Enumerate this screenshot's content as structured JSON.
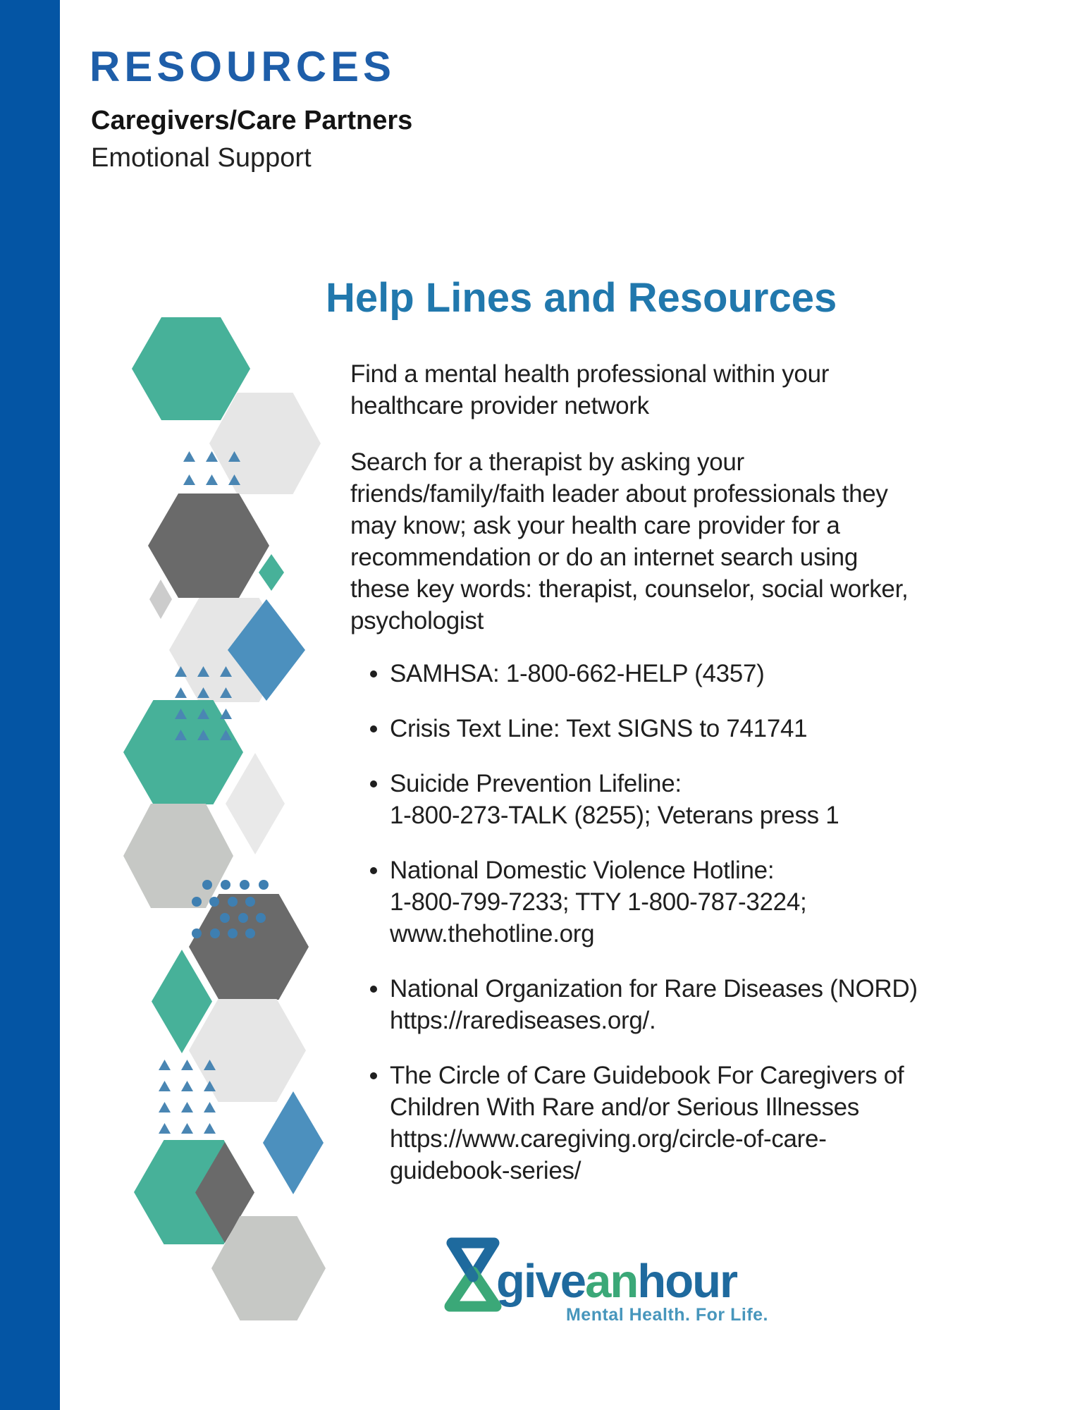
{
  "header": {
    "title": "RESOURCES",
    "subtitle_bold": "Caregivers/Care Partners",
    "subtitle": "Emotional Support"
  },
  "content": {
    "heading": "Help Lines and Resources",
    "paragraphs": [
      {
        "lines": [
          "Find a mental health professional within your",
          "healthcare provider network"
        ]
      },
      {
        "lines": [
          "Search for a therapist by asking your",
          "friends/family/faith leader about professionals they",
          "may know; ask your health care provider for a",
          "recommendation or do an internet search using",
          "these key words: therapist, counselor, social worker,",
          "psychologist"
        ]
      }
    ],
    "bullets": [
      {
        "lines": [
          "SAMHSA: 1-800-662-HELP (4357)"
        ]
      },
      {
        "lines": [
          "Crisis Text Line: Text SIGNS to 741741"
        ]
      },
      {
        "lines": [
          "Suicide Prevention Lifeline:",
          "1-800-273-TALK (8255); Veterans press 1"
        ]
      },
      {
        "lines": [
          "National Domestic Violence Hotline:",
          "1-800-799-7233; TTY 1-800-787-3224;",
          "www.thehotline.org"
        ]
      },
      {
        "lines": [
          "National Organization for Rare Diseases (NORD)",
          "https://rarediseases.org/."
        ]
      },
      {
        "lines": [
          "The Circle of Care Guidebook For Caregivers of",
          "Children With Rare and/or Serious Illnesses",
          "https://www.caregiving.org/circle-of-care-",
          "guidebook-series/"
        ]
      }
    ]
  },
  "logo": {
    "icon": "hourglass-icon",
    "word_give": "give",
    "word_an": "an",
    "word_hour": "hour",
    "tagline": "Mental Health. For Life."
  },
  "colors": {
    "accent_bar_blue": "#0455a4",
    "title_blue": "#1e5ea9",
    "heading_teal_blue": "#2178ad",
    "body_text": "#1f1f1f",
    "hex_teal": "#47b199",
    "hex_dark_gray": "#6a6a6a",
    "hex_light_gray": "#e6e6e6",
    "hex_silver": "#c6c8c5",
    "diamond_blue": "#4c90be",
    "triangle_blue": "#4a86b3",
    "dot_blue": "#3e7fb1",
    "logo_blue": "#1f6a9e",
    "logo_green": "#3ba878",
    "tagline_blue": "#4796bc"
  }
}
